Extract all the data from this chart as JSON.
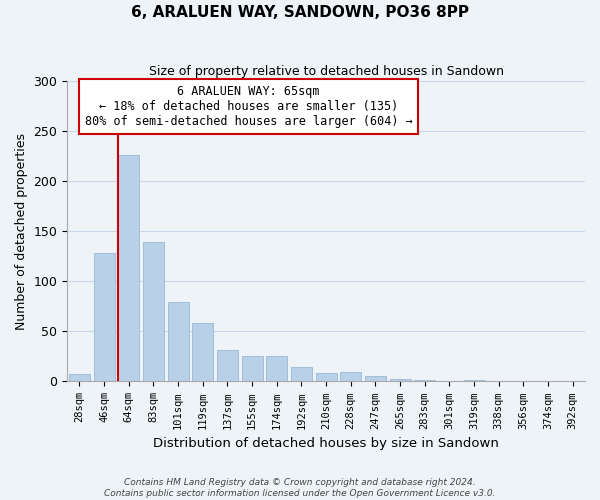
{
  "title": "6, ARALUEN WAY, SANDOWN, PO36 8PP",
  "subtitle": "Size of property relative to detached houses in Sandown",
  "xlabel": "Distribution of detached houses by size in Sandown",
  "ylabel": "Number of detached properties",
  "bar_labels": [
    "28sqm",
    "46sqm",
    "64sqm",
    "83sqm",
    "101sqm",
    "119sqm",
    "137sqm",
    "155sqm",
    "174sqm",
    "192sqm",
    "210sqm",
    "228sqm",
    "247sqm",
    "265sqm",
    "283sqm",
    "301sqm",
    "319sqm",
    "338sqm",
    "356sqm",
    "374sqm",
    "392sqm"
  ],
  "bar_values": [
    7,
    128,
    226,
    139,
    79,
    58,
    31,
    25,
    25,
    14,
    8,
    9,
    5,
    2,
    1,
    0,
    1,
    0,
    0,
    0,
    0
  ],
  "bar_color": "#b8d0e8",
  "bar_edge_color": "#9ab8d4",
  "vline_color": "#cc0000",
  "ylim": [
    0,
    300
  ],
  "yticks": [
    0,
    50,
    100,
    150,
    200,
    250,
    300
  ],
  "annotation_title": "6 ARALUEN WAY: 65sqm",
  "annotation_line1": "← 18% of detached houses are smaller (135)",
  "annotation_line2": "80% of semi-detached houses are larger (604) →",
  "annotation_box_color": "#ffffff",
  "annotation_box_edge": "#cc0000",
  "footer_line1": "Contains HM Land Registry data © Crown copyright and database right 2024.",
  "footer_line2": "Contains public sector information licensed under the Open Government Licence v3.0.",
  "grid_color": "#c8d8e8",
  "bg_color": "#eef3f8"
}
